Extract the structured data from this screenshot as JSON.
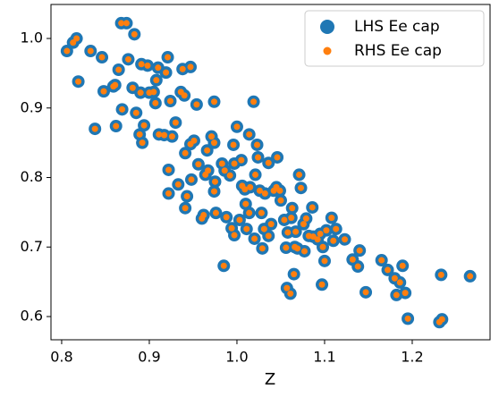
{
  "chart_data": {
    "type": "scatter",
    "xlabel": "Z",
    "x": [
      0.806,
      0.813,
      0.817,
      0.819,
      0.833,
      0.838,
      0.846,
      0.848,
      0.859,
      0.861,
      0.862,
      0.865,
      0.868,
      0.869,
      0.874,
      0.876,
      0.883,
      0.881,
      0.885,
      0.889,
      0.892,
      0.894,
      0.891,
      0.89,
      0.898,
      0.9,
      0.905,
      0.908,
      0.91,
      0.907,
      0.911,
      0.917,
      0.921,
      0.919,
      0.924,
      0.922,
      0.922,
      0.926,
      0.93,
      0.933,
      0.936,
      0.938,
      0.94,
      0.941,
      0.941,
      0.943,
      0.947,
      0.947,
      0.948,
      0.951,
      0.954,
      0.956,
      0.96,
      0.962,
      0.964,
      0.966,
      0.967,
      0.971,
      0.974,
      0.974,
      0.975,
      0.974,
      0.976,
      0.983,
      0.985,
      0.986,
      0.988,
      0.992,
      0.994,
      0.996,
      0.997,
      0.997,
      1.0,
      1.003,
      1.005,
      1.006,
      1.009,
      1.01,
      1.011,
      1.014,
      1.014,
      1.015,
      1.019,
      1.02,
      1.021,
      1.023,
      1.024,
      1.026,
      1.028,
      1.029,
      1.031,
      1.032,
      1.036,
      1.036,
      1.039,
      1.042,
      1.045,
      1.046,
      1.049,
      1.05,
      1.054,
      1.056,
      1.057,
      1.058,
      1.061,
      1.062,
      1.063,
      1.065,
      1.066,
      1.067,
      1.069,
      1.071,
      1.073,
      1.076,
      1.077,
      1.079,
      1.082,
      1.086,
      1.087,
      1.092,
      1.095,
      1.097,
      1.098,
      1.1,
      1.102,
      1.108,
      1.11,
      1.113,
      1.123,
      1.132,
      1.138,
      1.14,
      1.147,
      1.165,
      1.172,
      1.18,
      1.182,
      1.186,
      1.189,
      1.192,
      1.195,
      1.231,
      1.233,
      1.234,
      1.266
    ],
    "series": [
      {
        "name": "LHS Ee cap",
        "color": "#1f77b4",
        "size": 7,
        "values": [
          0.982,
          0.994,
          1.0,
          0.938,
          0.982,
          0.87,
          0.973,
          0.924,
          0.931,
          0.933,
          0.874,
          0.955,
          1.022,
          0.898,
          1.022,
          0.97,
          1.006,
          0.929,
          0.893,
          0.862,
          0.85,
          0.875,
          0.963,
          0.922,
          0.961,
          0.922,
          0.923,
          0.94,
          0.958,
          0.907,
          0.862,
          0.861,
          0.973,
          0.951,
          0.91,
          0.811,
          0.777,
          0.859,
          0.879,
          0.79,
          0.923,
          0.956,
          0.918,
          0.835,
          0.756,
          0.773,
          0.959,
          0.848,
          0.797,
          0.853,
          0.905,
          0.819,
          0.741,
          0.746,
          0.804,
          0.839,
          0.81,
          0.859,
          0.909,
          0.85,
          0.794,
          0.78,
          0.749,
          0.82,
          0.673,
          0.81,
          0.743,
          0.803,
          0.727,
          0.847,
          0.82,
          0.717,
          0.873,
          0.739,
          0.825,
          0.788,
          0.783,
          0.762,
          0.726,
          0.862,
          0.749,
          0.786,
          0.909,
          0.712,
          0.804,
          0.847,
          0.829,
          0.781,
          0.749,
          0.698,
          0.726,
          0.777,
          0.821,
          0.716,
          0.733,
          0.781,
          0.786,
          0.829,
          0.781,
          0.767,
          0.739,
          0.699,
          0.641,
          0.721,
          0.633,
          0.742,
          0.756,
          0.661,
          0.7,
          0.722,
          0.698,
          0.804,
          0.785,
          0.733,
          0.694,
          0.741,
          0.716,
          0.757,
          0.715,
          0.711,
          0.719,
          0.646,
          0.7,
          0.68,
          0.724,
          0.742,
          0.709,
          0.726,
          0.711,
          0.682,
          0.672,
          0.695,
          0.635,
          0.681,
          0.667,
          0.655,
          0.631,
          0.649,
          0.673,
          0.634,
          0.597,
          0.592,
          0.66,
          0.596,
          0.658
        ]
      },
      {
        "name": "RHS Ee cap",
        "color": "#ff7f0e",
        "size": 3.5,
        "values": [
          0.982,
          0.994,
          1.0,
          0.938,
          0.982,
          0.87,
          0.973,
          0.924,
          0.931,
          0.933,
          0.874,
          0.955,
          1.022,
          0.898,
          1.022,
          0.97,
          1.006,
          0.929,
          0.893,
          0.862,
          0.85,
          0.875,
          0.963,
          0.922,
          0.961,
          0.922,
          0.923,
          0.94,
          0.958,
          0.907,
          0.862,
          0.861,
          0.973,
          0.951,
          0.91,
          0.811,
          0.777,
          0.859,
          0.879,
          0.79,
          0.923,
          0.956,
          0.918,
          0.835,
          0.756,
          0.773,
          0.959,
          0.848,
          0.797,
          0.853,
          0.905,
          0.819,
          0.741,
          0.746,
          0.804,
          0.839,
          0.81,
          0.859,
          0.909,
          0.85,
          0.794,
          0.78,
          0.749,
          0.82,
          0.673,
          0.81,
          0.743,
          0.803,
          0.727,
          0.847,
          0.82,
          0.717,
          0.873,
          0.739,
          0.825,
          0.788,
          0.783,
          0.762,
          0.726,
          0.862,
          0.749,
          0.786,
          0.909,
          0.712,
          0.804,
          0.847,
          0.829,
          0.781,
          0.749,
          0.698,
          0.726,
          0.777,
          0.821,
          0.716,
          0.733,
          0.781,
          0.786,
          0.829,
          0.781,
          0.767,
          0.739,
          0.699,
          0.641,
          0.721,
          0.633,
          0.742,
          0.756,
          0.661,
          0.7,
          0.722,
          0.698,
          0.804,
          0.785,
          0.733,
          0.694,
          0.741,
          0.716,
          0.757,
          0.715,
          0.711,
          0.719,
          0.646,
          0.7,
          0.68,
          0.724,
          0.742,
          0.709,
          0.726,
          0.711,
          0.682,
          0.672,
          0.695,
          0.635,
          0.681,
          0.667,
          0.655,
          0.631,
          0.649,
          0.673,
          0.634,
          0.597,
          0.592,
          0.66,
          0.596,
          0.658
        ]
      }
    ],
    "xlim": [
      0.7878,
      1.2888
    ],
    "ylim": [
      0.5666,
      1.0489
    ],
    "xticks": [
      0.8,
      0.9,
      {
        "value": 1,
        "label": "1.0"
      },
      1.1,
      1.2
    ],
    "yticks": [
      0.6,
      0.7,
      0.8,
      0.9,
      {
        "value": 1,
        "label": "1.0"
      }
    ],
    "legend": "upper right"
  }
}
